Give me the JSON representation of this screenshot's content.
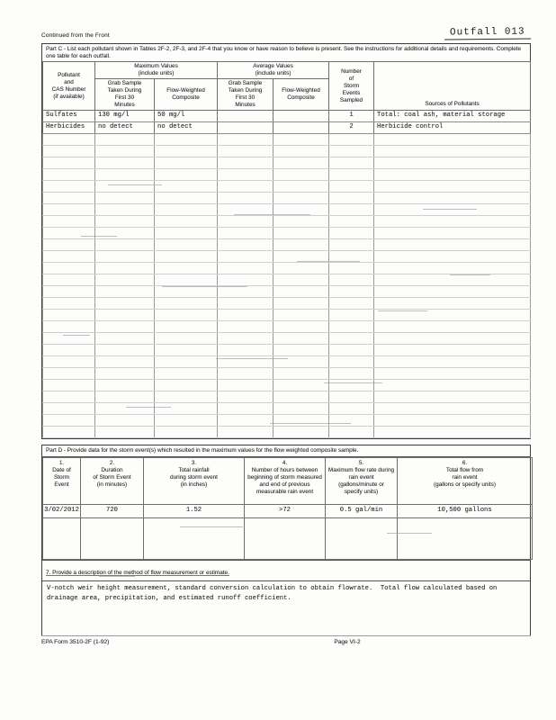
{
  "page": {
    "continued_label": "Continued from the Front",
    "outfall_label": "Outfall 013"
  },
  "part_c": {
    "title": "Part C - List each pollutant shown in Tables 2F-2, 2F-3, and 2F-4 that you know or have reason to believe is present. See the instructions for additional details and requirements. Complete one table for each outfall.",
    "columns": {
      "pollutant": "Pollutant\nand\nCAS Number\n(if available)",
      "max_group": "Maximum Values\n(include units)",
      "avg_group": "Average Values\n(include units)",
      "grab_sample": "Grab Sample\nTaken During\nFirst 30\nMinutes",
      "flow_weighted": "Flow-Weighted\nComposite",
      "storm_events": "Number\nof\nStorm\nEvents\nSampled",
      "sources": "Sources of Pollutants"
    },
    "rows": [
      {
        "pollutant": "Sulfates",
        "grab_max": "130 mg/l",
        "fw_max": "50 mg/l",
        "grab_avg": "",
        "fw_avg": "",
        "events": "1",
        "sources": "Total: coal ash, material storage"
      },
      {
        "pollutant": "Herbicides",
        "grab_max": "no detect",
        "fw_max": "no detect",
        "grab_avg": "",
        "fw_avg": "",
        "events": "2",
        "sources": "Herbicide control"
      }
    ],
    "empty_row_count": 26
  },
  "part_d": {
    "title": "Part D - Provide data for the storm event(s) which resulted in the maximum values for the flow weighted composite sample.",
    "columns": [
      "1.\nDate of\nStorm\nEvent",
      "2.\nDuration\nof Storm Event\n(in minutes)",
      "3.\nTotal rainfall\nduring storm event\n(in inches)",
      "4.\nNumber of hours between\nbeginning of storm measured\nand end of previous\nmeasurable rain event",
      "5.\nMaximum flow rate during\nrain event\n(gallons/minute or\nspecify units)",
      "6.\nTotal flow from\nrain event\n(gallons or specify units)"
    ],
    "row": [
      "3/02/2012",
      "720",
      "1.52",
      ">72",
      "0.5 gal/min",
      "10,500 gallons"
    ],
    "item7_label": "7.  Provide a description of the method of flow measurement or estimate.",
    "item7_text": "V-notch weir height measurement, standard conversion calculation to obtain flowrate.  Total flow calculated based on drainage area, precipitation, and estimated runoff coefficient."
  },
  "footer": {
    "form_number": "EPA Form 3510-2F (1-92)",
    "page_label": "Page VI-2"
  }
}
